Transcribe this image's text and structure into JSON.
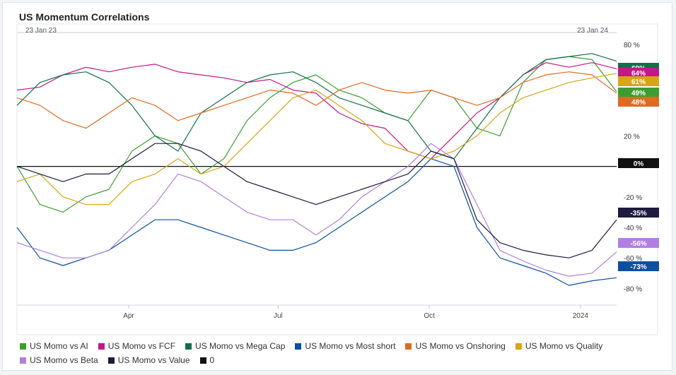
{
  "title": "US Momentum Correlations",
  "chart_data": {
    "type": "line",
    "title": "US Momentum Correlations",
    "x_start_label": "23 Jan 23",
    "x_end_label": "23 Jan 24",
    "x_ticks": [
      "Apr",
      "Jul",
      "Oct",
      "2024"
    ],
    "y_ticks": [
      "80 %",
      "20 %",
      "-20 %",
      "-40 %",
      "-60 %",
      "-80 %"
    ],
    "ylim": [
      -90,
      85
    ],
    "grid": false,
    "legend_position": "bottom",
    "x": [
      "2023-01-23",
      "2023-02-06",
      "2023-02-20",
      "2023-03-06",
      "2023-03-20",
      "2023-04-03",
      "2023-04-17",
      "2023-05-01",
      "2023-05-15",
      "2023-05-29",
      "2023-06-12",
      "2023-06-26",
      "2023-07-10",
      "2023-07-24",
      "2023-08-07",
      "2023-08-21",
      "2023-09-04",
      "2023-09-18",
      "2023-10-02",
      "2023-10-16",
      "2023-10-30",
      "2023-11-13",
      "2023-11-27",
      "2023-12-11",
      "2023-12-25",
      "2024-01-08",
      "2024-01-23"
    ],
    "series": [
      {
        "name": "US Momo vs AI",
        "color": "#3d9e2f",
        "values": [
          0,
          -25,
          -30,
          -20,
          -15,
          10,
          20,
          15,
          -5,
          5,
          30,
          45,
          55,
          60,
          50,
          45,
          35,
          30,
          50,
          45,
          25,
          20,
          55,
          70,
          72,
          70,
          49
        ]
      },
      {
        "name": "US Momo vs FCF",
        "color": "#c2188a",
        "values": [
          50,
          52,
          60,
          65,
          62,
          65,
          67,
          62,
          60,
          58,
          55,
          57,
          50,
          48,
          35,
          28,
          25,
          10,
          5,
          20,
          35,
          45,
          60,
          68,
          65,
          68,
          64
        ]
      },
      {
        "name": "US Momo vs Mega Cap",
        "color": "#12704a",
        "values": [
          40,
          55,
          60,
          62,
          55,
          40,
          20,
          10,
          35,
          45,
          55,
          60,
          62,
          55,
          45,
          40,
          35,
          30,
          10,
          5,
          25,
          45,
          60,
          70,
          72,
          74,
          69
        ]
      },
      {
        "name": "US Momo vs Most short",
        "color": "#0d4f9e",
        "values": [
          -40,
          -60,
          -65,
          -60,
          -55,
          -45,
          -35,
          -35,
          -40,
          -45,
          -50,
          -55,
          -55,
          -50,
          -40,
          -30,
          -20,
          -10,
          5,
          0,
          -40,
          -60,
          -65,
          -70,
          -78,
          -75,
          -73
        ]
      },
      {
        "name": "US Momo vs Onshoring",
        "color": "#e06a22",
        "values": [
          45,
          40,
          30,
          25,
          35,
          45,
          40,
          30,
          35,
          40,
          45,
          50,
          48,
          40,
          50,
          55,
          50,
          48,
          50,
          45,
          40,
          45,
          55,
          60,
          62,
          60,
          48
        ]
      },
      {
        "name": "US Momo vs Quality",
        "color": "#d6a616",
        "values": [
          -10,
          -5,
          -20,
          -25,
          -25,
          -10,
          -5,
          5,
          -5,
          0,
          15,
          30,
          45,
          50,
          40,
          30,
          15,
          10,
          5,
          10,
          20,
          35,
          45,
          50,
          55,
          58,
          61
        ]
      },
      {
        "name": "US Momo vs Beta",
        "color": "#b07fe0",
        "values": [
          -50,
          -55,
          -60,
          -60,
          -55,
          -40,
          -25,
          -5,
          -10,
          -20,
          -30,
          -35,
          -35,
          -45,
          -35,
          -20,
          -10,
          0,
          15,
          5,
          -25,
          -55,
          -62,
          -68,
          -72,
          -70,
          -56
        ]
      },
      {
        "name": "US Momo vs Value",
        "color": "#1d1b3f",
        "values": [
          0,
          -5,
          -10,
          -5,
          -5,
          5,
          15,
          15,
          10,
          0,
          -10,
          -15,
          -20,
          -25,
          -20,
          -15,
          -10,
          -5,
          10,
          5,
          -35,
          -50,
          -55,
          -58,
          -60,
          -55,
          -35
        ]
      },
      {
        "name": "0",
        "color": "#111111",
        "values": [
          0,
          0,
          0,
          0,
          0,
          0,
          0,
          0,
          0,
          0,
          0,
          0,
          0,
          0,
          0,
          0,
          0,
          0,
          0,
          0,
          0,
          0,
          0,
          0,
          0,
          0,
          0
        ]
      }
    ],
    "end_labels": [
      {
        "text": "69%",
        "value": 69,
        "color": "#12704a"
      },
      {
        "text": "64%",
        "value": 64,
        "color": "#c2188a"
      },
      {
        "text": "61%",
        "value": 61,
        "color": "#d6a616"
      },
      {
        "text": "49%",
        "value": 49,
        "color": "#3d9e2f"
      },
      {
        "text": "48%",
        "value": 48,
        "color": "#e06a22"
      },
      {
        "text": "0%",
        "value": 0,
        "color": "#111111"
      },
      {
        "text": "-35%",
        "value": -35,
        "color": "#1d1b3f"
      },
      {
        "text": "-56%",
        "value": -56,
        "color": "#b07fe0"
      },
      {
        "text": "-73%",
        "value": -73,
        "color": "#0d4f9e"
      }
    ]
  }
}
